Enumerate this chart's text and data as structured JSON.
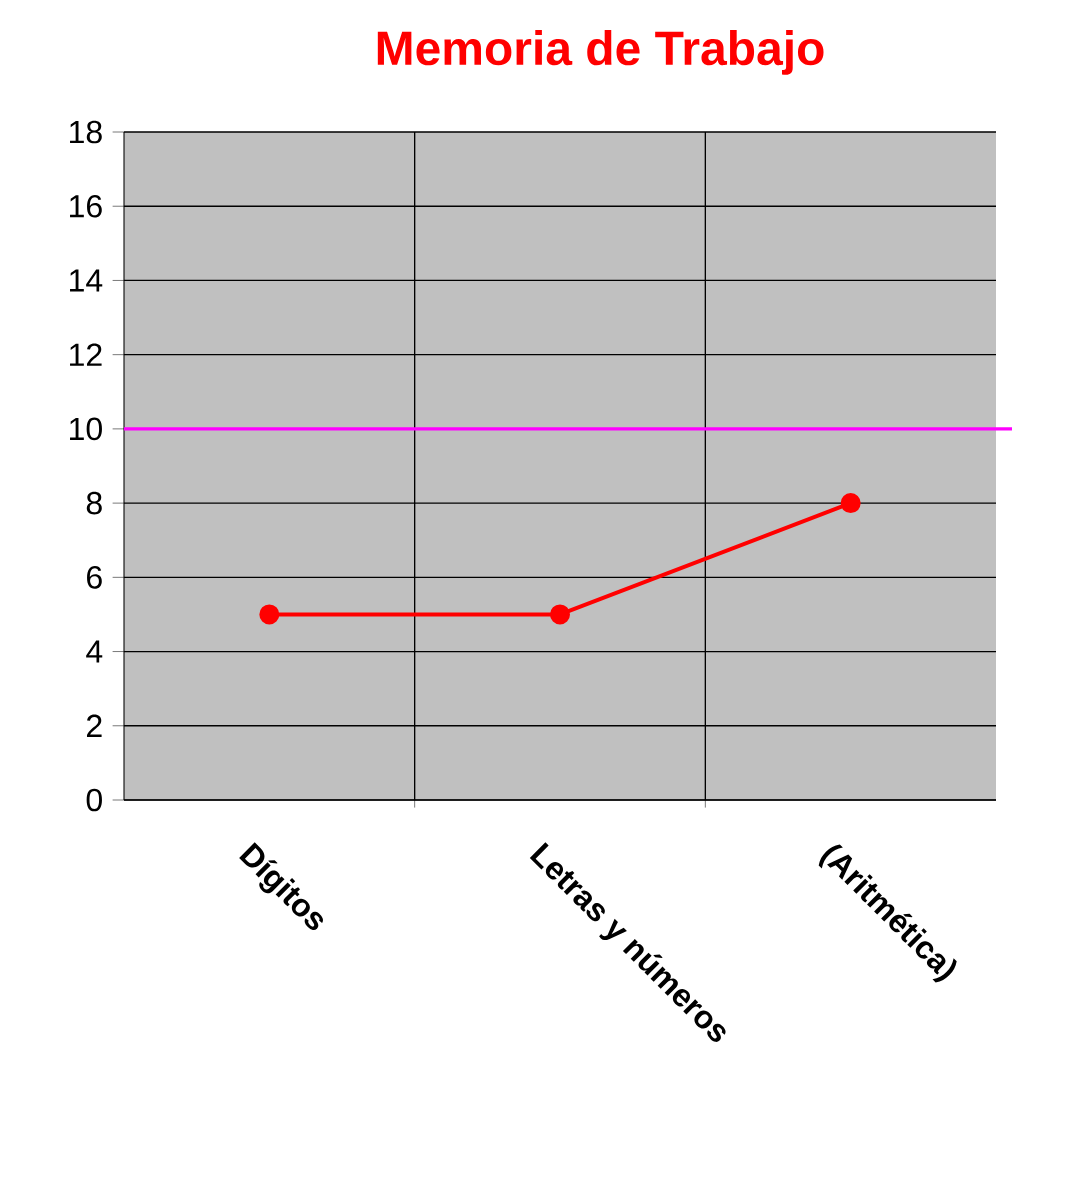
{
  "chart_data": {
    "type": "line",
    "title": "Memoria de Trabajo",
    "categories": [
      "Dígitos",
      "Letras y números",
      "(Aritmética)"
    ],
    "series": [
      {
        "color": "#ff0000",
        "values": [
          5,
          5,
          8
        ]
      }
    ],
    "marker": "circle",
    "line_style": "solid",
    "ylim": [
      0,
      18
    ],
    "yticks": [
      0,
      2,
      4,
      6,
      8,
      10,
      12,
      14,
      16,
      18
    ],
    "grid": true,
    "ref_lines": [
      {
        "axis": "y",
        "value": 10,
        "color": "#ff00ff"
      }
    ]
  }
}
